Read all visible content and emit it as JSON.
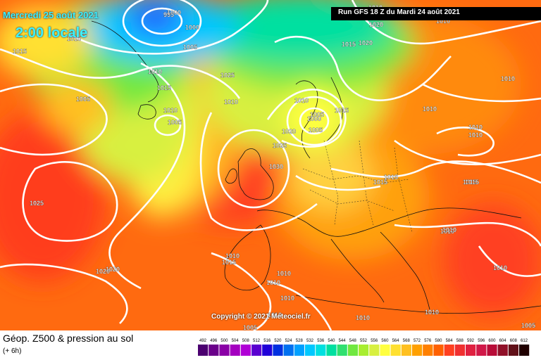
{
  "header": {
    "date_label": "Mercredi 25 août 2021",
    "time_label": "2:00 locale",
    "run_label": "Run GFS 18 Z du Mardi 24 août 2021"
  },
  "footer": {
    "copyright": "Copyright © 2021 Meteociel.fr",
    "title": "Géop. Z500 & pression au sol",
    "subtitle": "(+ 6h)"
  },
  "scale_ticks": [
    "492",
    "496",
    "500",
    "504",
    "508",
    "512",
    "516",
    "520",
    "524",
    "528",
    "532",
    "536",
    "540",
    "544",
    "548",
    "552",
    "556",
    "560",
    "564",
    "568",
    "572",
    "576",
    "580",
    "584",
    "588",
    "592",
    "596",
    "600",
    "604",
    "608",
    "612"
  ],
  "scale_colors": [
    "#4b0070",
    "#6a008a",
    "#8a00a6",
    "#a400c0",
    "#b000d6",
    "#5a00d0",
    "#2000d8",
    "#0030e0",
    "#0070f0",
    "#00a0ff",
    "#00c8ff",
    "#00e0e0",
    "#00e0a0",
    "#30e070",
    "#70e840",
    "#a8ee30",
    "#d8f040",
    "#ffff40",
    "#ffe030",
    "#ffc020",
    "#ffa000",
    "#ff8000",
    "#ff6000",
    "#ff4020",
    "#f03030",
    "#e02040",
    "#d01848",
    "#b80c38",
    "#901028",
    "#601018",
    "#200000"
  ],
  "isobar_labels": [
    "995",
    "1000",
    "1005",
    "1010",
    "1015",
    "1015",
    "1015",
    "1010",
    "1005",
    "1025",
    "1010",
    "1005",
    "1010",
    "1005",
    "1000",
    "1005",
    "1015",
    "1020",
    "1025",
    "1030",
    "1015",
    "1015",
    "1010",
    "1010",
    "1010",
    "1015",
    "1020",
    "1020",
    "1010",
    "1010",
    "1010",
    "1015",
    "1010",
    "1010",
    "1005",
    "1010",
    "1025",
    "1020",
    "1010",
    "1015",
    "1010",
    "1010",
    "1005",
    "1010",
    "1000",
    "1015",
    "1020",
    "1010",
    "1010",
    "1010"
  ]
}
